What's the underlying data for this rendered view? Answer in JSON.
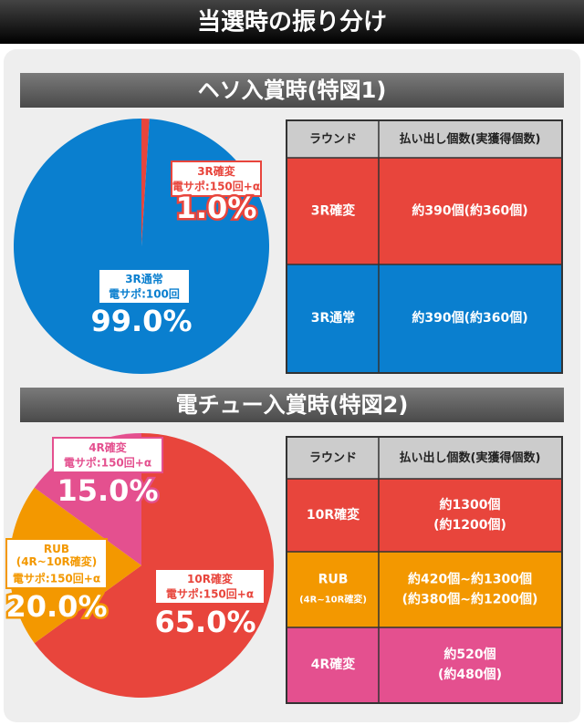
{
  "title": "当選時の振り分け",
  "chart_data": [
    {
      "type": "pie",
      "title": "ヘソ入賞時(特図1)",
      "categories": [
        "3R確変",
        "3R通常"
      ],
      "sublabels": [
        "電サポ:150回+α",
        "電サポ:100回"
      ],
      "values": [
        1.0,
        99.0
      ],
      "value_labels": [
        "1.0%",
        "99.0%"
      ],
      "colors": [
        "#e8453c",
        "#0a7fcf"
      ]
    },
    {
      "type": "pie",
      "title": "電チュー入賞時(特図2)",
      "categories": [
        "10R確変",
        "RUB\n(4R~10R確変)",
        "4R確変"
      ],
      "sublabels": [
        "電サポ:150回+α",
        "電サポ:150回+α",
        "電サポ:150回+α"
      ],
      "values": [
        65.0,
        20.0,
        15.0
      ],
      "value_labels": [
        "65.0%",
        "20.0%",
        "15.0%"
      ],
      "colors": [
        "#e8453c",
        "#f39800",
        "#e4508f"
      ]
    }
  ],
  "tables": [
    {
      "header": [
        "ラウンド",
        "払い出し個数(実獲得個数)"
      ],
      "rows": [
        [
          [
            "3R確変"
          ],
          [
            "約390個(約360個)"
          ]
        ],
        [
          [
            "3R通常"
          ],
          [
            "約390個(約360個)"
          ]
        ]
      ]
    },
    {
      "header": [
        "ラウンド",
        "払い出し個数(実獲得個数)"
      ],
      "rows": [
        [
          [
            "10R確変"
          ],
          [
            "約1300個",
            "(約1200個)"
          ]
        ],
        [
          [
            "RUB",
            "(4R~10R確変)"
          ],
          [
            "約420個~約1300個",
            "(約380個~約1200個)"
          ]
        ],
        [
          [
            "4R確変"
          ],
          [
            "約520個",
            "(約480個)"
          ]
        ]
      ]
    }
  ]
}
